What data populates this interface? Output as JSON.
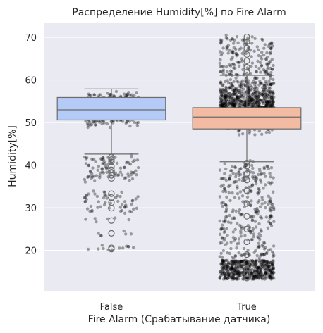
{
  "chart_data": {
    "type": "box",
    "title": "Распределение Humidity[%] по Fire Alarm",
    "xlabel": "Fire Alarm (Срабатывание датчика)",
    "ylabel": "Humidity[%]",
    "categories": [
      "False",
      "True"
    ],
    "ylim": [
      10.5,
      73.5
    ],
    "yticks": [
      20,
      30,
      40,
      50,
      60,
      70
    ],
    "grid": true,
    "overlay": "strip",
    "boxes": [
      {
        "category": "False",
        "color": "#b4cbf7",
        "whisker_low": 42.6,
        "q1": 50.6,
        "median": 53.0,
        "q3": 55.9,
        "whisker_high": 57.9,
        "outliers": [
          41.9,
          41.3,
          40.8,
          39.7,
          38.9,
          38.2,
          37.6,
          36.9,
          33.3,
          32.4,
          31.2,
          29.9,
          27.0,
          24.0,
          20.6,
          20.3
        ]
      },
      {
        "category": "True",
        "color": "#f2bba2",
        "whisker_low": 40.8,
        "q1": 48.5,
        "median": 51.3,
        "q3": 53.5,
        "whisker_high": 61.1,
        "outliers": [
          70.1,
          69.0,
          67.5,
          66.0,
          64.5,
          63.0,
          61.8,
          40.5,
          39.8,
          38.0,
          36.5,
          34.0,
          31.0,
          28.0,
          25.0,
          22.0,
          19.0,
          17.0,
          15.5,
          14.5,
          13.5
        ]
      }
    ],
    "colors": {
      "background": "#eaeaf2",
      "grid": "#ffffff",
      "points": "#000000",
      "box_edge": "#6b6b6b"
    }
  }
}
